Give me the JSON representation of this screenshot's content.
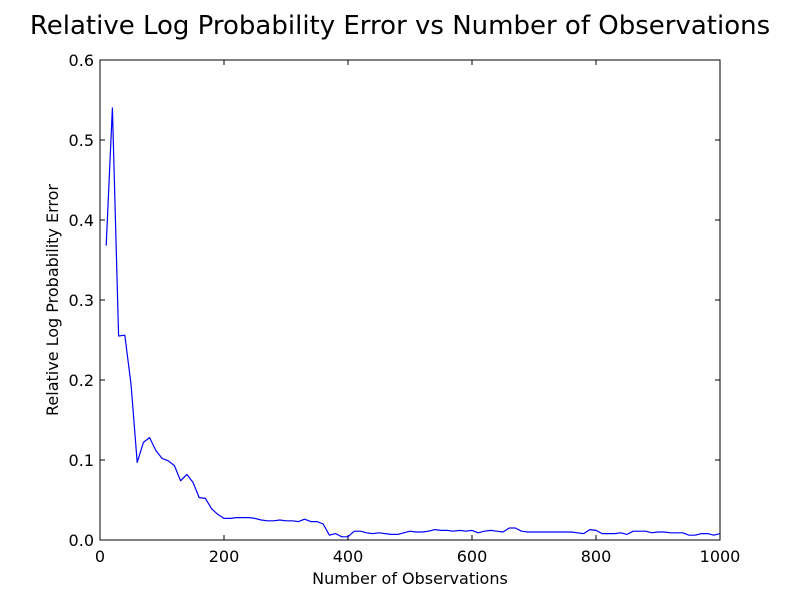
{
  "chart_data": {
    "type": "line",
    "title": "Relative Log Probability Error vs Number of Observations",
    "xlabel": "Number of Observations",
    "ylabel": "Relative Log Probability Error",
    "xlim": [
      0,
      1000
    ],
    "ylim": [
      0,
      0.6
    ],
    "xticks": [
      0,
      200,
      400,
      600,
      800,
      1000
    ],
    "xtick_labels": [
      "0",
      "200",
      "400",
      "600",
      "800",
      "1000"
    ],
    "yticks": [
      0,
      0.1,
      0.2,
      0.3,
      0.4,
      0.5,
      0.6
    ],
    "ytick_labels": [
      "0.0",
      "0.1",
      "0.2",
      "0.3",
      "0.4",
      "0.5",
      "0.6"
    ],
    "grid": false,
    "line_color": "#0000ff",
    "series": [
      {
        "x": [
          10,
          20,
          30,
          40,
          50,
          60,
          70,
          80,
          90,
          100,
          110,
          120,
          130,
          140,
          150,
          160,
          170,
          180,
          190,
          200,
          210,
          220,
          230,
          240,
          250,
          260,
          270,
          280,
          290,
          300,
          310,
          320,
          330,
          340,
          350,
          360,
          370,
          380,
          390,
          400,
          410,
          420,
          430,
          440,
          450,
          460,
          470,
          480,
          490,
          500,
          510,
          520,
          530,
          540,
          550,
          560,
          570,
          580,
          590,
          600,
          610,
          620,
          630,
          640,
          650,
          660,
          670,
          680,
          690,
          700,
          710,
          720,
          730,
          740,
          750,
          760,
          770,
          780,
          790,
          800,
          810,
          820,
          830,
          840,
          850,
          860,
          870,
          880,
          890,
          900,
          910,
          920,
          930,
          940,
          950,
          960,
          970,
          980,
          990,
          1000
        ],
        "y": [
          0.368,
          0.54,
          0.255,
          0.256,
          0.195,
          0.097,
          0.122,
          0.128,
          0.112,
          0.102,
          0.099,
          0.093,
          0.074,
          0.082,
          0.072,
          0.053,
          0.052,
          0.039,
          0.032,
          0.027,
          0.027,
          0.028,
          0.028,
          0.028,
          0.027,
          0.025,
          0.024,
          0.024,
          0.025,
          0.024,
          0.024,
          0.023,
          0.026,
          0.023,
          0.023,
          0.02,
          0.006,
          0.008,
          0.004,
          0.004,
          0.011,
          0.011,
          0.009,
          0.008,
          0.009,
          0.008,
          0.007,
          0.007,
          0.009,
          0.011,
          0.01,
          0.01,
          0.011,
          0.013,
          0.012,
          0.012,
          0.011,
          0.012,
          0.011,
          0.012,
          0.009,
          0.011,
          0.012,
          0.011,
          0.01,
          0.015,
          0.015,
          0.011,
          0.01,
          0.01,
          0.01,
          0.01,
          0.01,
          0.01,
          0.01,
          0.01,
          0.009,
          0.008,
          0.013,
          0.012,
          0.008,
          0.008,
          0.008,
          0.009,
          0.007,
          0.011,
          0.011,
          0.011,
          0.009,
          0.01,
          0.01,
          0.009,
          0.009,
          0.009,
          0.006,
          0.006,
          0.008,
          0.008,
          0.006,
          0.008
        ]
      }
    ]
  }
}
